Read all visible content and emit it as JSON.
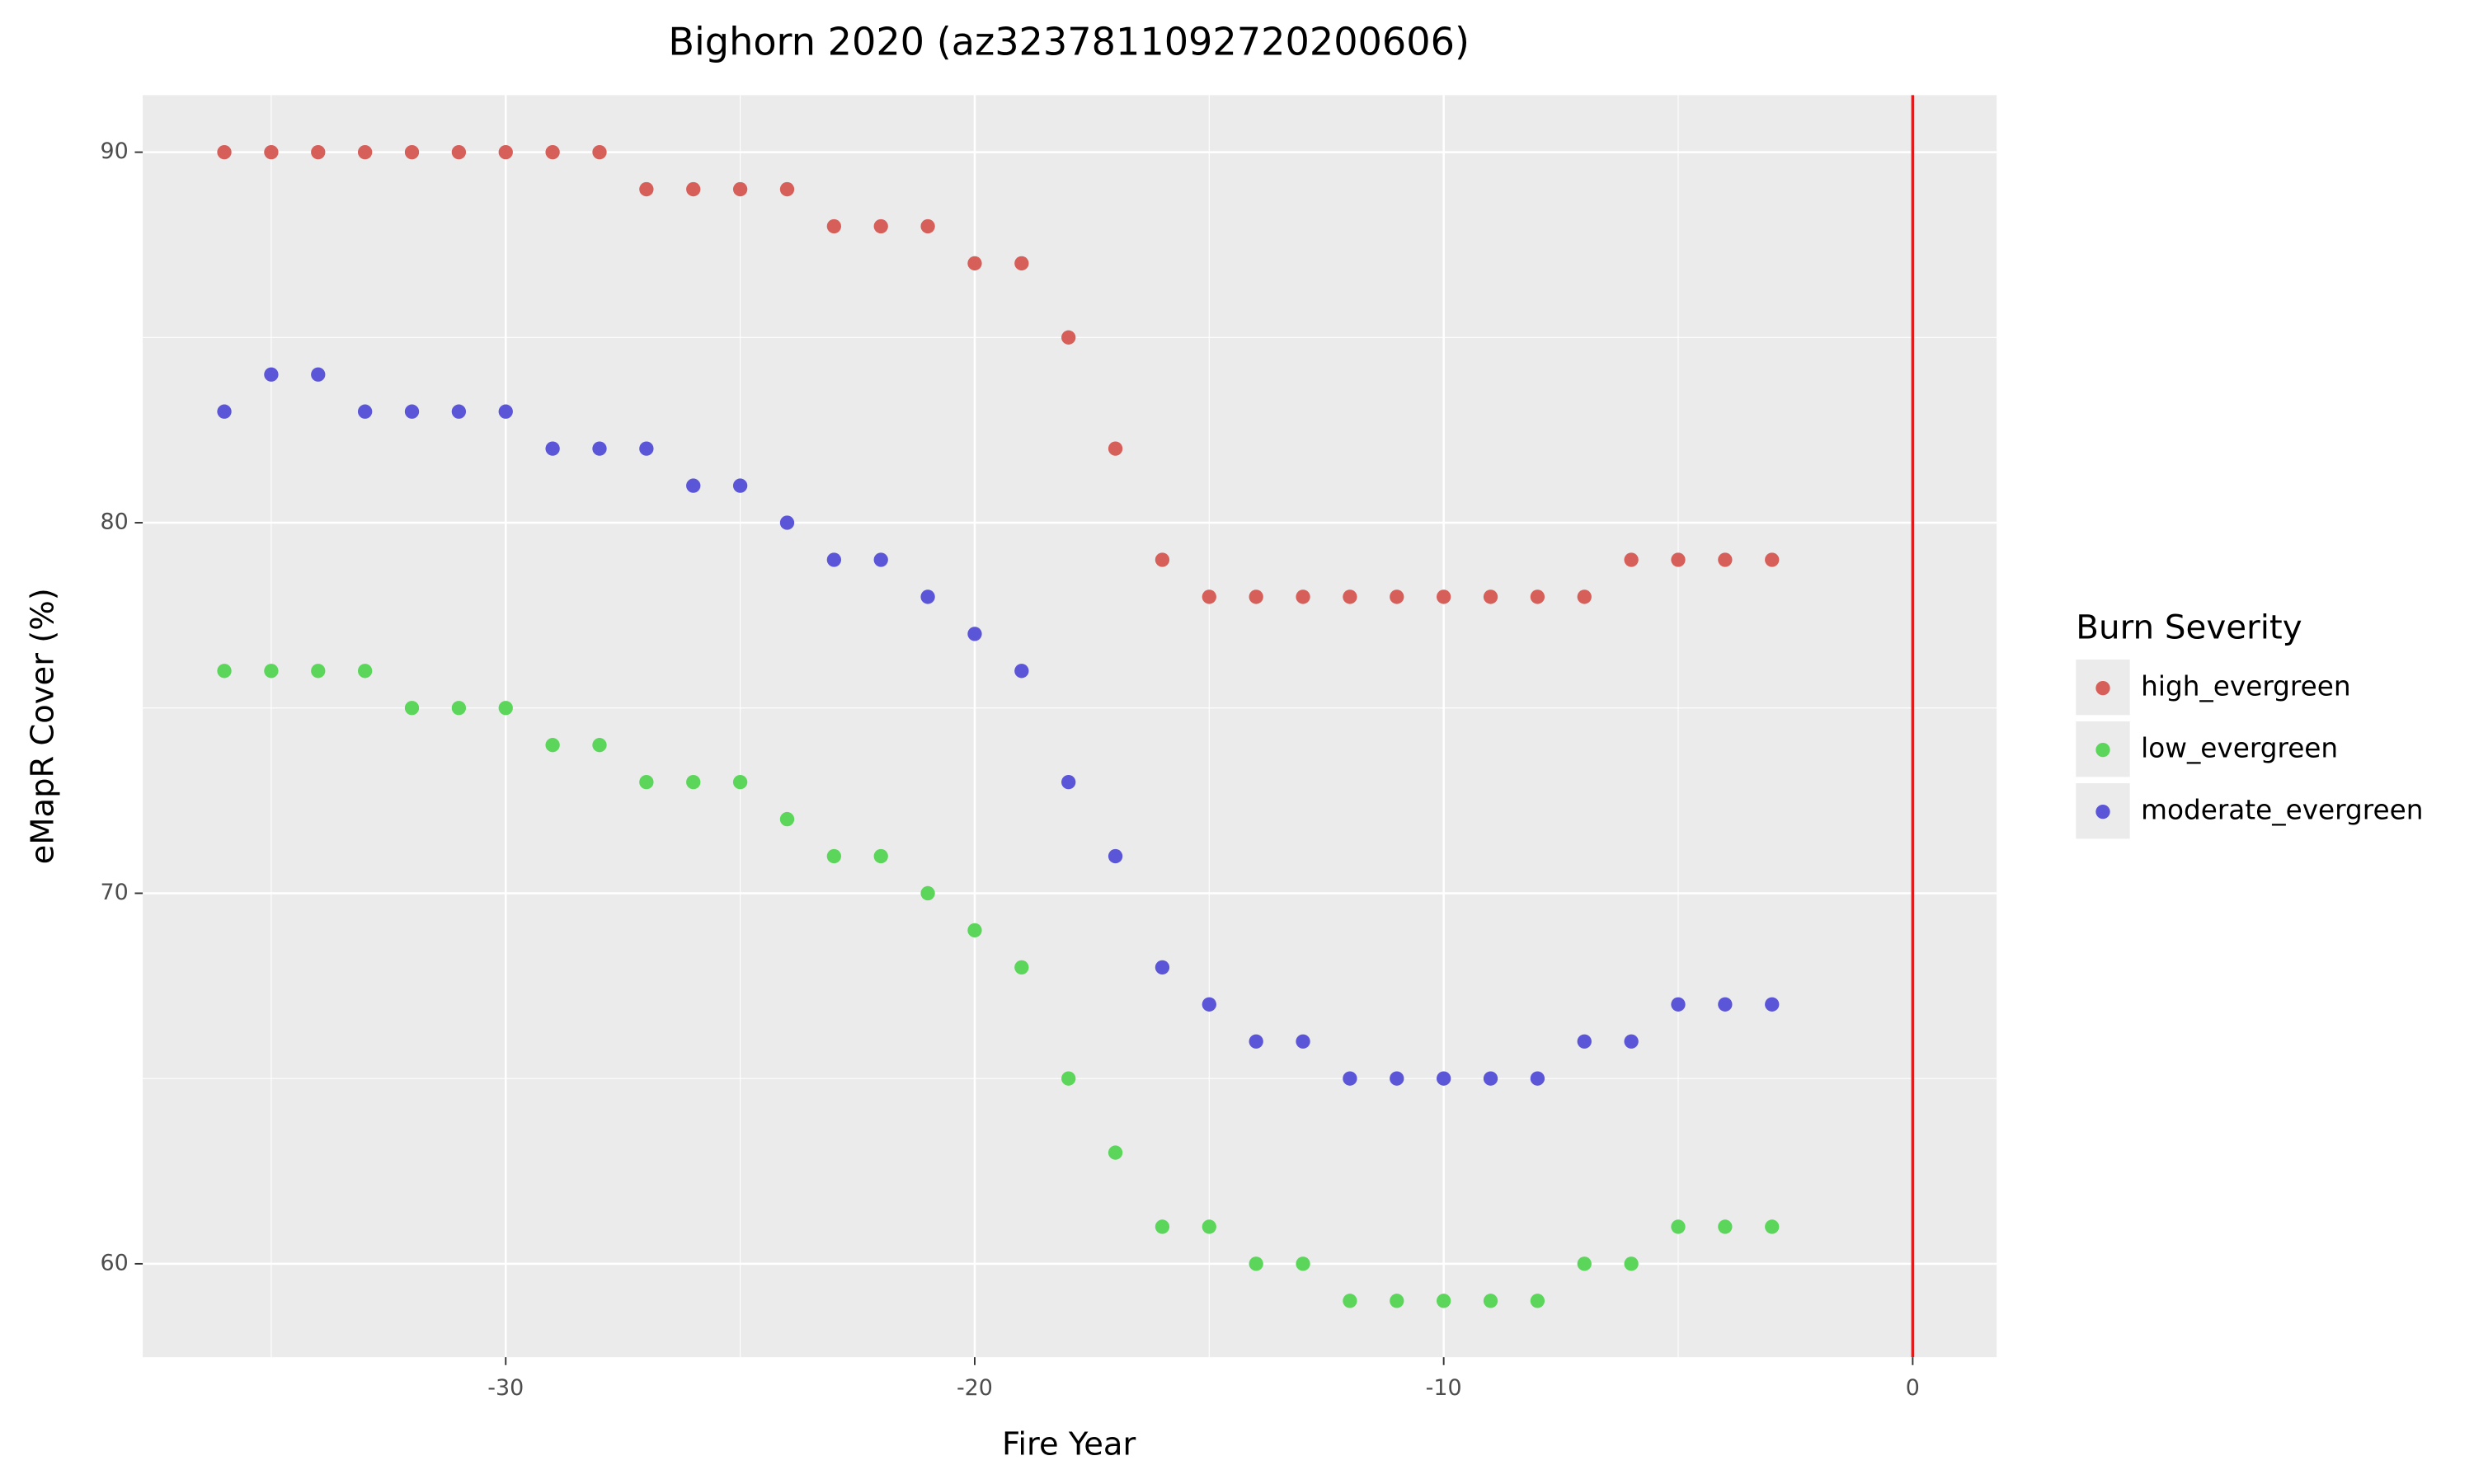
{
  "chart_data": {
    "type": "scatter",
    "title": "Bighorn 2020 (az3237811092720200606)",
    "x_label": "Fire Year",
    "y_label": "eMapR Cover (%)",
    "legend_title": "Burn Severity",
    "x": [
      -36,
      -35,
      -34,
      -33,
      -32,
      -31,
      -30,
      -29,
      -28,
      -27,
      -26,
      -25,
      -24,
      -23,
      -22,
      -21,
      -20,
      -19,
      -18,
      -17,
      -16,
      -15,
      -14,
      -13,
      -12,
      -11,
      -10,
      -9,
      -8,
      -7,
      -6,
      -5,
      -4,
      -3
    ],
    "series": [
      {
        "name": "high_evergreen",
        "color": "#d65f5a",
        "values": [
          90,
          90,
          90,
          90,
          90,
          90,
          90,
          90,
          90,
          89,
          89,
          89,
          89,
          88,
          88,
          88,
          87,
          87,
          85,
          82,
          79,
          78,
          78,
          78,
          78,
          78,
          78,
          78,
          78,
          78,
          79,
          79,
          79,
          79
        ]
      },
      {
        "name": "low_evergreen",
        "color": "#5bd65b",
        "values": [
          76,
          76,
          76,
          76,
          75,
          75,
          75,
          74,
          74,
          73,
          73,
          73,
          72,
          71,
          71,
          70,
          69,
          68,
          65,
          63,
          61,
          61,
          60,
          60,
          59,
          59,
          59,
          59,
          59,
          60,
          60,
          61,
          61,
          61
        ]
      },
      {
        "name": "moderate_evergreen",
        "color": "#5b55d8",
        "values": [
          83,
          84,
          84,
          83,
          83,
          83,
          83,
          82,
          82,
          82,
          81,
          81,
          80,
          79,
          79,
          78,
          77,
          76,
          73,
          71,
          68,
          67,
          66,
          66,
          65,
          65,
          65,
          65,
          65,
          66,
          66,
          67,
          67,
          67
        ]
      }
    ],
    "xlim": [
      -37.74,
      1.79
    ],
    "ylim": [
      57.48,
      91.54
    ],
    "xticks": [
      -30,
      -20,
      -10,
      0
    ],
    "yticks": [
      60,
      70,
      80,
      90
    ],
    "minor_xticks": [
      -35,
      -25,
      -15,
      -5
    ],
    "minor_yticks": [
      65,
      75,
      85
    ],
    "vline": 0,
    "vline_color": "#e31a1c",
    "grid": true,
    "legend": "right"
  }
}
